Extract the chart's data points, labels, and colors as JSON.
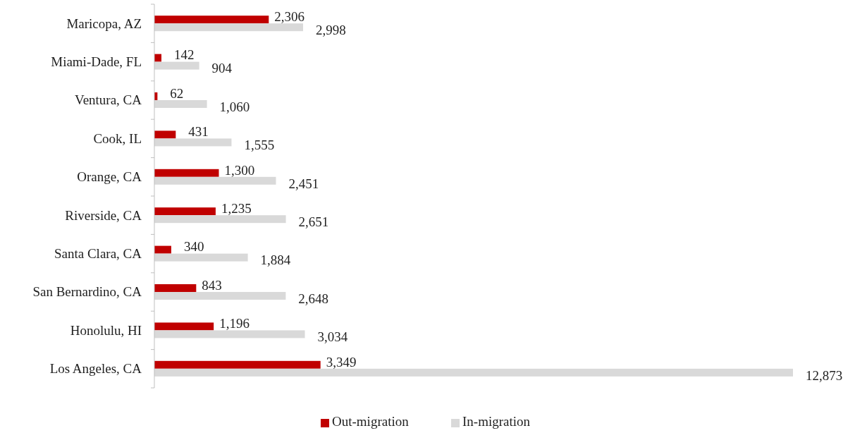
{
  "chart_data": {
    "type": "bar",
    "orientation": "horizontal",
    "categories": [
      "Maricopa, AZ",
      "Miami-Dade, FL",
      "Ventura, CA",
      "Cook, IL",
      "Orange, CA",
      "Riverside, CA",
      "Santa Clara, CA",
      "San Bernardino, CA",
      "Honolulu, HI",
      "Los Angeles, CA"
    ],
    "series": [
      {
        "name": "Out-migration",
        "color": "#c00000",
        "values": [
          2306,
          142,
          62,
          431,
          1300,
          1235,
          340,
          843,
          1196,
          3349
        ],
        "value_labels": [
          "2,306",
          "142",
          "62",
          "431",
          "1,300",
          "1,235",
          "340",
          "843",
          "1,196",
          "3,349"
        ]
      },
      {
        "name": "In-migration",
        "color": "#d9d9d9",
        "values": [
          2998,
          904,
          1060,
          1555,
          2451,
          2651,
          1884,
          2648,
          3034,
          12873
        ],
        "value_labels": [
          "2,998",
          "904",
          "1,060",
          "1,555",
          "2,451",
          "2,651",
          "1,884",
          "2,648",
          "3,034",
          "12,873"
        ]
      }
    ],
    "legend": "bottom",
    "grid": false
  }
}
